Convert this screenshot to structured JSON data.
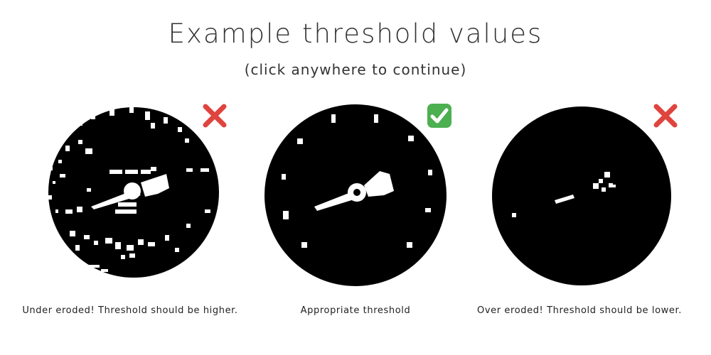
{
  "title": "Example threshold values",
  "subtitle": "(click anywhere to continue)",
  "examples": [
    {
      "caption": "Under eroded! Threshold should be higher.",
      "status": "incorrect",
      "status_icon": "red-cross-icon"
    },
    {
      "caption": "Appropriate threshold",
      "status": "correct",
      "status_icon": "green-check-icon"
    },
    {
      "caption": "Over eroded! Threshold should be lower.",
      "status": "incorrect",
      "status_icon": "red-cross-icon"
    }
  ],
  "colors": {
    "cross": "#e0443e",
    "check_bg": "#4caf50",
    "check_fg": "#ffffff"
  }
}
